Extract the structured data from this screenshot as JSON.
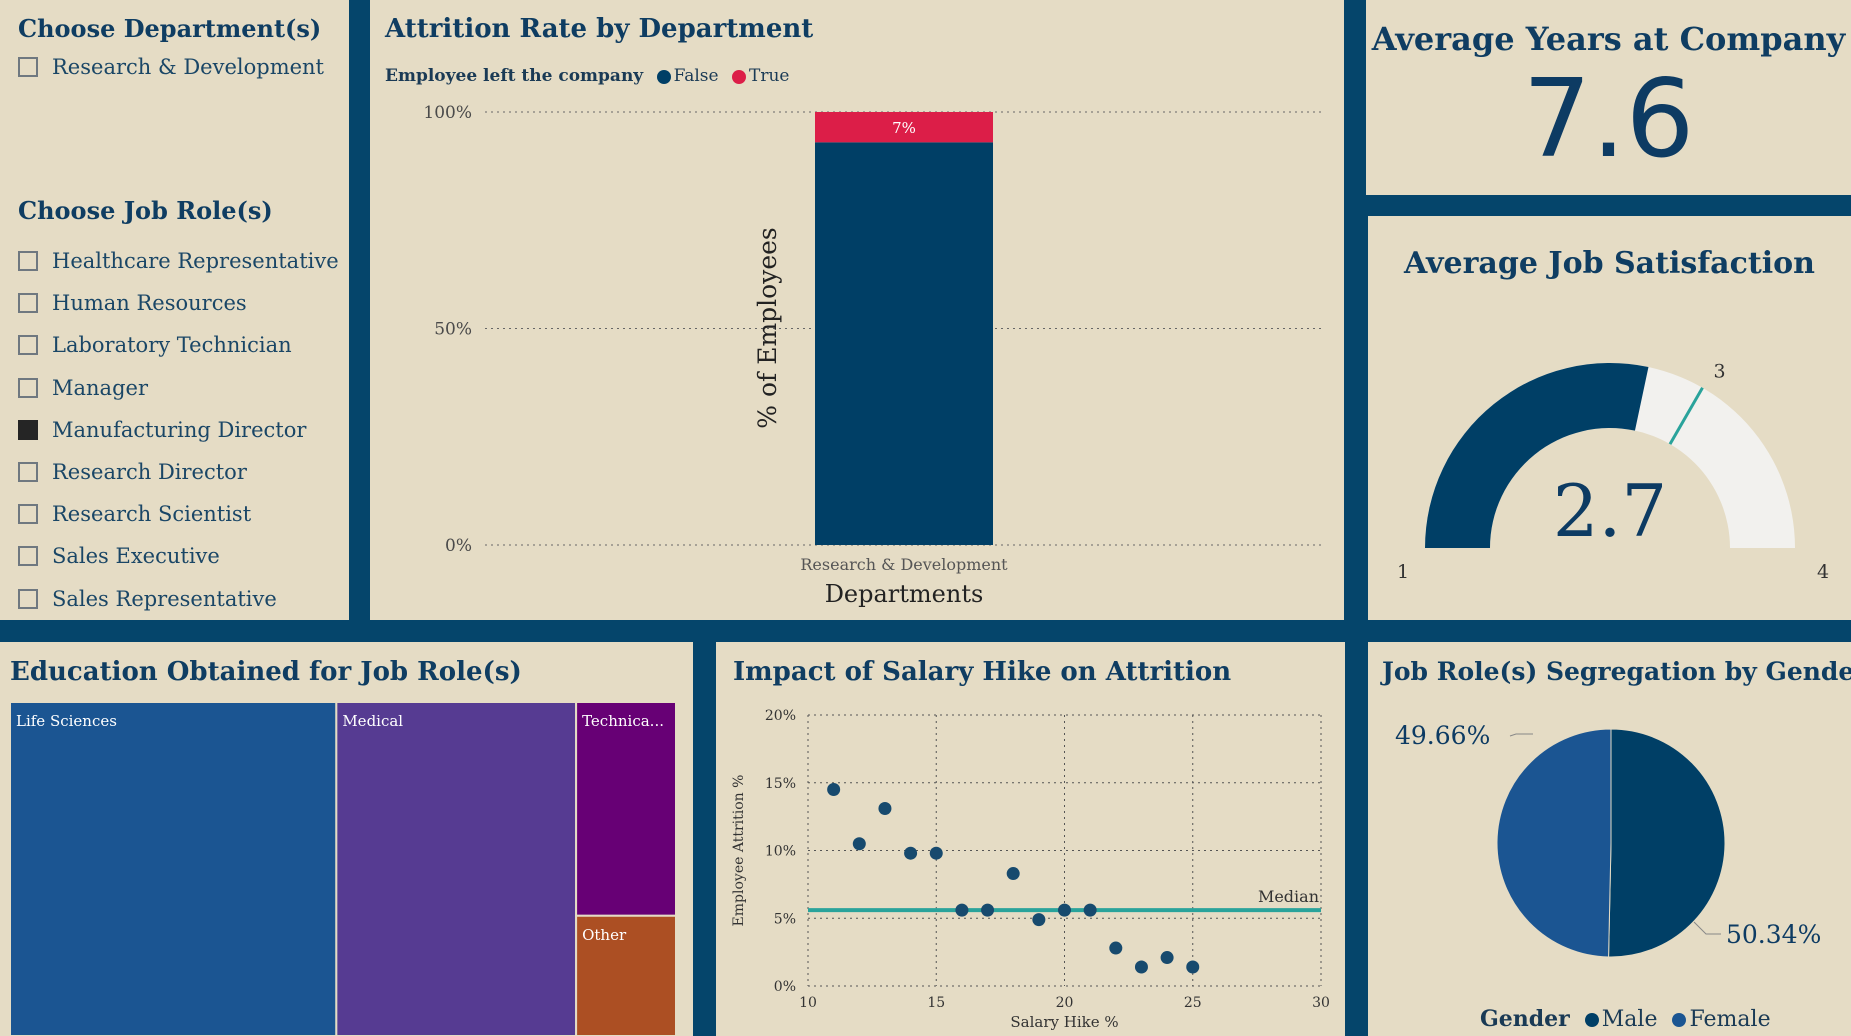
{
  "filters": {
    "department": {
      "title": "Choose Department(s)",
      "items": [
        {
          "label": "Research & Development",
          "checked": false
        }
      ]
    },
    "job_role": {
      "title": "Choose Job Role(s)",
      "items": [
        {
          "label": "Healthcare Representative",
          "checked": false
        },
        {
          "label": "Human Resources",
          "checked": false
        },
        {
          "label": "Laboratory Technician",
          "checked": false
        },
        {
          "label": "Manager",
          "checked": false
        },
        {
          "label": "Manufacturing Director",
          "checked": true
        },
        {
          "label": "Research Director",
          "checked": false
        },
        {
          "label": "Research Scientist",
          "checked": false
        },
        {
          "label": "Sales Executive",
          "checked": false
        },
        {
          "label": "Sales Representative",
          "checked": false
        }
      ]
    }
  },
  "attrition": {
    "title": "Attrition Rate by Department",
    "legend_title": "Employee left the company",
    "legend_false": "False",
    "legend_true": "True",
    "bar_label": "7%"
  },
  "years": {
    "title": "Average Years at Company",
    "value": "7.6"
  },
  "satisfaction": {
    "title": "Average Job Satisfaction",
    "value": "2.7",
    "min_label": "1",
    "max_label": "4",
    "target_label": "3"
  },
  "education": {
    "title": "Education Obtained for Job Role(s)"
  },
  "salary": {
    "title": "Impact of Salary Hike on Attrition",
    "median_label": "Median"
  },
  "gender": {
    "title": "Job Role(s) Segregation by Gender",
    "legend_title": "Gender",
    "male_label": "Male",
    "female_label": "Female",
    "male_pct_label": "50.34%",
    "female_pct_label": "49.66%"
  },
  "colors": {
    "navy": "#003f66",
    "red": "#dc1e48",
    "blue": "#1b5592",
    "purple": "#563b92",
    "violet": "#670075",
    "orange": "#ac4f23",
    "teal": "#2aa39b",
    "gauge_track": "#f2f1ee"
  },
  "chart_data": [
    {
      "type": "bar",
      "stacked": true,
      "categories": [
        "Research & Development"
      ],
      "series": [
        {
          "name": "False",
          "values": [
            93
          ]
        },
        {
          "name": "True",
          "values": [
            7
          ]
        }
      ],
      "xlabel": "Departments",
      "ylabel": "% of Employees",
      "ylim": [
        0,
        100
      ],
      "yticks": [
        "0%",
        "50%",
        "100%"
      ]
    },
    {
      "type": "heatmap",
      "subtype": "treemap",
      "categories": [
        "Life Sciences",
        "Medical",
        "Technica...",
        "Other"
      ],
      "values": [
        49,
        36,
        9.6,
        5.4
      ]
    },
    {
      "type": "scatter",
      "x": [
        11,
        12,
        13,
        14,
        15,
        16,
        17,
        18,
        19,
        20,
        21,
        22,
        23,
        24,
        25
      ],
      "y": [
        14.5,
        10.5,
        13.1,
        9.8,
        9.8,
        5.6,
        5.6,
        8.3,
        4.9,
        5.6,
        5.6,
        2.8,
        1.4,
        2.1,
        1.4
      ],
      "median": 5.6,
      "xlabel": "Salary Hike %",
      "ylabel": "Employee Attrition %",
      "xlim": [
        10,
        30
      ],
      "ylim": [
        0,
        20
      ],
      "xticks": [
        "10",
        "15",
        "20",
        "25",
        "30"
      ],
      "yticks": [
        "0%",
        "5%",
        "10%",
        "15%",
        "20%"
      ]
    },
    {
      "type": "pie",
      "categories": [
        "Male",
        "Female"
      ],
      "values": [
        50.34,
        49.66
      ]
    }
  ],
  "gauge": {
    "value": 2.7,
    "min": 1,
    "max": 4,
    "target": 3
  }
}
